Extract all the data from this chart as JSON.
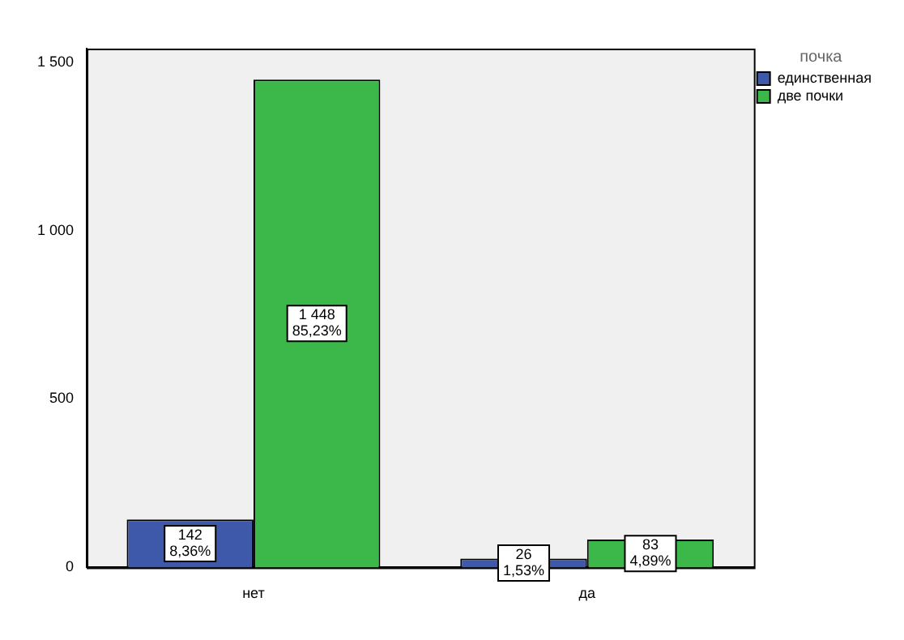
{
  "chart_data": {
    "type": "bar",
    "categories": [
      "нет",
      "да"
    ],
    "legend_title": "почка",
    "legend": "top right",
    "grid": false,
    "ylim": [
      0,
      1540
    ],
    "yticks": [
      0,
      500,
      {
        "value": 1000,
        "label": "1 000"
      },
      {
        "value": 1500,
        "label": "1 500"
      }
    ],
    "series": [
      {
        "name": "единственная",
        "color": "#3e59a9",
        "values": [
          142,
          26
        ],
        "value_labels": [
          "142\n8,36%",
          "26\n1,53%"
        ]
      },
      {
        "name": "две почки",
        "color": "#3cb84a",
        "values": [
          1448,
          83
        ],
        "value_labels": [
          "1 448\n85,23%",
          "83\n4,89%"
        ]
      }
    ]
  }
}
